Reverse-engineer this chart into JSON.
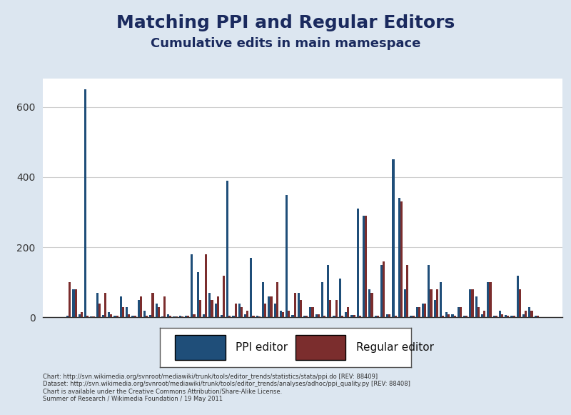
{
  "title": "Matching PPI and Regular Editors",
  "subtitle": "Cumulative edits in main mamespace",
  "ppi_color": "#1F4E79",
  "reg_color": "#7B2D2D",
  "bg_color": "#DCE6F0",
  "plot_bg_color": "#FFFFFF",
  "ylim": [
    0,
    680
  ],
  "yticks": [
    0,
    200,
    400,
    600
  ],
  "grid_color": "#D0D0D0",
  "legend_label_ppi": "PPI editor",
  "legend_label_reg": "Regular editor",
  "title_color": "#1A2A5E",
  "title_fontsize": 18,
  "subtitle_fontsize": 13,
  "footer_lines": [
    "Chart: http://svn.wikimedia.org/svnroot/mediawiki/trunk/tools/editor_trends/statistics/stata/ppi.do [REV: 88409]",
    "Dataset: http://svn.wikimedia.org/svnroot/mediawiki/trunk/tools/editor_trends/analyses/adhoc/ppi_quality.py [REV: 88408]",
    "Chart is available under the Creative Commons Attribution/Share-Alike License.",
    "Summer of Research / Wikimedia Foundation / 19 May 2011"
  ],
  "ppi_values": [
    5,
    80,
    10,
    650,
    3,
    70,
    8,
    15,
    5,
    60,
    30,
    5,
    50,
    20,
    8,
    40,
    3,
    10,
    2,
    5,
    5,
    180,
    130,
    10,
    70,
    40,
    8,
    390,
    5,
    40,
    10,
    170,
    5,
    100,
    60,
    40,
    20,
    350,
    8,
    70,
    5,
    30,
    10,
    100,
    150,
    5,
    110,
    15,
    8,
    310,
    290,
    80,
    5,
    150,
    10,
    450,
    340,
    80,
    5,
    30,
    40,
    150,
    50,
    100,
    15,
    10,
    30,
    5,
    80,
    60,
    10,
    100,
    5,
    20,
    8,
    5,
    120,
    10,
    30,
    5
  ],
  "reg_values": [
    100,
    80,
    15,
    5,
    3,
    40,
    70,
    10,
    5,
    30,
    10,
    5,
    60,
    5,
    70,
    30,
    60,
    5,
    3,
    2,
    5,
    10,
    50,
    180,
    50,
    60,
    120,
    5,
    40,
    30,
    20,
    5,
    3,
    40,
    60,
    100,
    15,
    20,
    70,
    50,
    5,
    30,
    10,
    5,
    50,
    50,
    5,
    30,
    8,
    5,
    290,
    70,
    5,
    160,
    10,
    5,
    330,
    150,
    5,
    30,
    40,
    80,
    80,
    5,
    10,
    5,
    30,
    5,
    80,
    30,
    20,
    100,
    5,
    10,
    5,
    5,
    80,
    20,
    20,
    5
  ]
}
